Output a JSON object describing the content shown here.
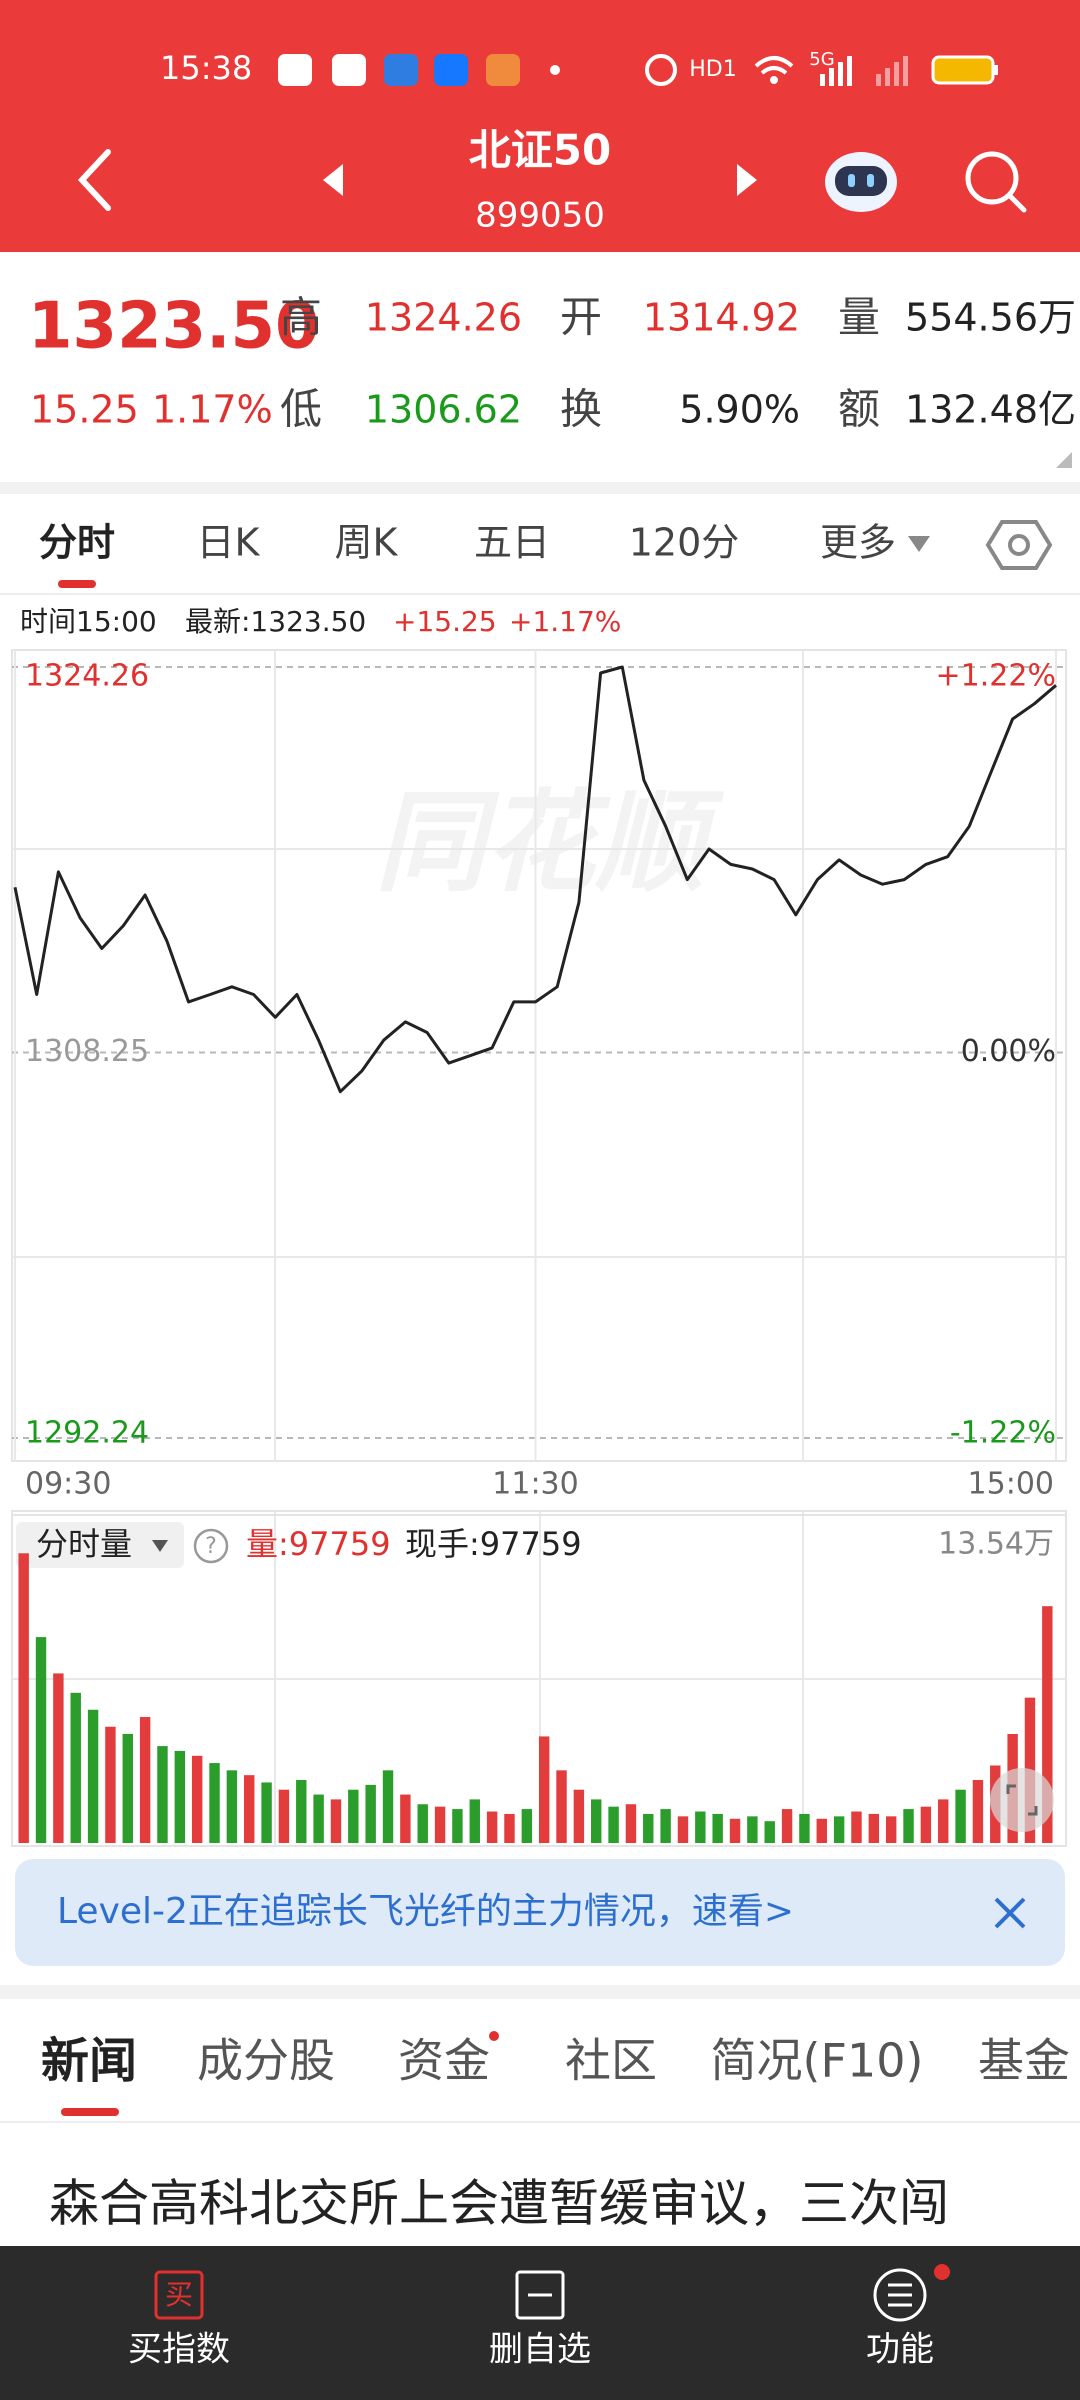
{
  "status_bar": {
    "time": "15:38",
    "hd": "HD1",
    "network": "5G"
  },
  "header": {
    "title": "北证50",
    "code": "899050"
  },
  "quote": {
    "price": "1323.50",
    "change": "15.25",
    "change_pct": "1.17%",
    "stats": [
      {
        "label": "高",
        "value": "1324.26"
      },
      {
        "label": "开",
        "value": "1314.92"
      },
      {
        "label": "量",
        "value": "554.56万"
      },
      {
        "label": "低",
        "value": "1306.62"
      },
      {
        "label": "换",
        "value": "5.90%"
      },
      {
        "label": "额",
        "value": "132.48亿"
      }
    ]
  },
  "tabs": [
    "分时",
    "日K",
    "周K",
    "五日",
    "120分",
    "更多"
  ],
  "info": {
    "time": "时间15:00",
    "latest": "最新:1323.50",
    "change": "+15.25",
    "change_pct": "+1.17%"
  },
  "watermark": "同花顺",
  "chart_data": [
    {
      "type": "line",
      "color": "#222222",
      "x": [
        0,
        5,
        10,
        15,
        20,
        25,
        30,
        35,
        40,
        45,
        50,
        55,
        60,
        65,
        70,
        75,
        80,
        85,
        90,
        95,
        100,
        105,
        110,
        115,
        120,
        125,
        130,
        135,
        140,
        145,
        150,
        155,
        160,
        165,
        170,
        175,
        180,
        185,
        190,
        195,
        200,
        205,
        210,
        215,
        220,
        225,
        230,
        235,
        240
      ],
      "values": [
        1315.11,
        1310.66,
        1315.75,
        1313.84,
        1312.57,
        1313.52,
        1314.79,
        1312.89,
        1310.35,
        1310.66,
        1310.98,
        1310.66,
        1309.71,
        1310.66,
        1308.76,
        1306.62,
        1307.49,
        1308.76,
        1309.52,
        1309.08,
        1307.81,
        1308.12,
        1308.44,
        1310.35,
        1310.35,
        1310.98,
        1314.48,
        1324.01,
        1324.26,
        1319.56,
        1317.65,
        1315.43,
        1316.7,
        1316.06,
        1315.87,
        1315.43,
        1313.97,
        1315.43,
        1316.25,
        1315.62,
        1315.24,
        1315.43,
        1316.06,
        1316.38,
        1317.65,
        1319.88,
        1322.1,
        1322.73,
        1323.5
      ],
      "xlim": [
        0,
        240
      ],
      "xticks": [
        {
          "value": 0,
          "label": "09:30"
        },
        {
          "value": 120,
          "label": "11:30"
        },
        {
          "value": 240,
          "label": "15:00"
        }
      ],
      "ylim": [
        1292.24,
        1324.26
      ],
      "yticks": [
        1324.26,
        1308.25,
        1292.24
      ],
      "y2lim": [
        -1.22,
        1.22
      ],
      "y2ticks": [
        {
          "value": 1.22,
          "label": "+1.22%"
        },
        {
          "value": 0,
          "label": "0.00%"
        },
        {
          "value": -1.22,
          "label": "-1.22%"
        }
      ]
    },
    {
      "type": "bar",
      "x": [
        0,
        4,
        8,
        12,
        16,
        20,
        24,
        28,
        32,
        36,
        40,
        44,
        48,
        52,
        56,
        60,
        64,
        68,
        72,
        76,
        80,
        84,
        88,
        92,
        96,
        100,
        104,
        108,
        112,
        116,
        120,
        124,
        128,
        132,
        136,
        140,
        144,
        148,
        152,
        156,
        160,
        164,
        168,
        172,
        176,
        180,
        184,
        188,
        192,
        196,
        200,
        204,
        208,
        212,
        216,
        220,
        224,
        228,
        232,
        236
      ],
      "values": [
        119600,
        85000,
        70000,
        62000,
        55000,
        48000,
        45000,
        52000,
        40000,
        38000,
        36000,
        33000,
        30000,
        28000,
        25000,
        22000,
        26000,
        20000,
        18000,
        22000,
        24000,
        30000,
        20000,
        16000,
        15000,
        14000,
        18000,
        13000,
        12000,
        14000,
        44000,
        30000,
        22000,
        18000,
        15000,
        16000,
        12000,
        14000,
        11000,
        13000,
        12000,
        10000,
        11000,
        9000,
        14000,
        12000,
        10000,
        11000,
        13000,
        12000,
        11000,
        14000,
        15000,
        18000,
        22000,
        26000,
        32000,
        45000,
        60000,
        97759
      ],
      "colors": [
        "#e23c3c",
        "#2a9d2a",
        "#e23c3c",
        "#2a9d2a",
        "#2a9d2a",
        "#e23c3c",
        "#2a9d2a",
        "#e23c3c",
        "#2a9d2a",
        "#2a9d2a",
        "#e23c3c",
        "#2a9d2a",
        "#2a9d2a",
        "#e23c3c",
        "#2a9d2a",
        "#e23c3c",
        "#2a9d2a",
        "#2a9d2a",
        "#e23c3c",
        "#2a9d2a",
        "#2a9d2a",
        "#2a9d2a",
        "#e23c3c",
        "#2a9d2a",
        "#e23c3c",
        "#2a9d2a",
        "#2a9d2a",
        "#e23c3c",
        "#e23c3c",
        "#2a9d2a",
        "#e23c3c",
        "#e23c3c",
        "#e23c3c",
        "#2a9d2a",
        "#2a9d2a",
        "#e23c3c",
        "#2a9d2a",
        "#2a9d2a",
        "#e23c3c",
        "#2a9d2a",
        "#2a9d2a",
        "#e23c3c",
        "#2a9d2a",
        "#2a9d2a",
        "#e23c3c",
        "#2a9d2a",
        "#e23c3c",
        "#2a9d2a",
        "#e23c3c",
        "#e23c3c",
        "#e23c3c",
        "#2a9d2a",
        "#e23c3c",
        "#e23c3c",
        "#2a9d2a",
        "#e23c3c",
        "#e23c3c",
        "#e23c3c",
        "#e23c3c",
        "#e23c3c"
      ],
      "xlim": [
        0,
        240
      ],
      "ylim": [
        0,
        135400
      ],
      "yticks": [
        {
          "value": 135400,
          "label": "13.54万"
        }
      ]
    }
  ],
  "volume_info": {
    "selector": "分时量",
    "help": "?",
    "volume": "量:97759",
    "hand": "现手:97759"
  },
  "banner": {
    "text": "Level-2正在追踪长飞光纤的主力情况，速看>"
  },
  "news_tabs": [
    "新闻",
    "成分股",
    "资金",
    "社区",
    "简况(F10)",
    "基金"
  ],
  "headline": "森合高科北交所上会遭暂缓审议，三次闯",
  "bottom_nav": {
    "buy_icon": "买",
    "items": [
      "买指数",
      "删自选",
      "功能"
    ]
  }
}
